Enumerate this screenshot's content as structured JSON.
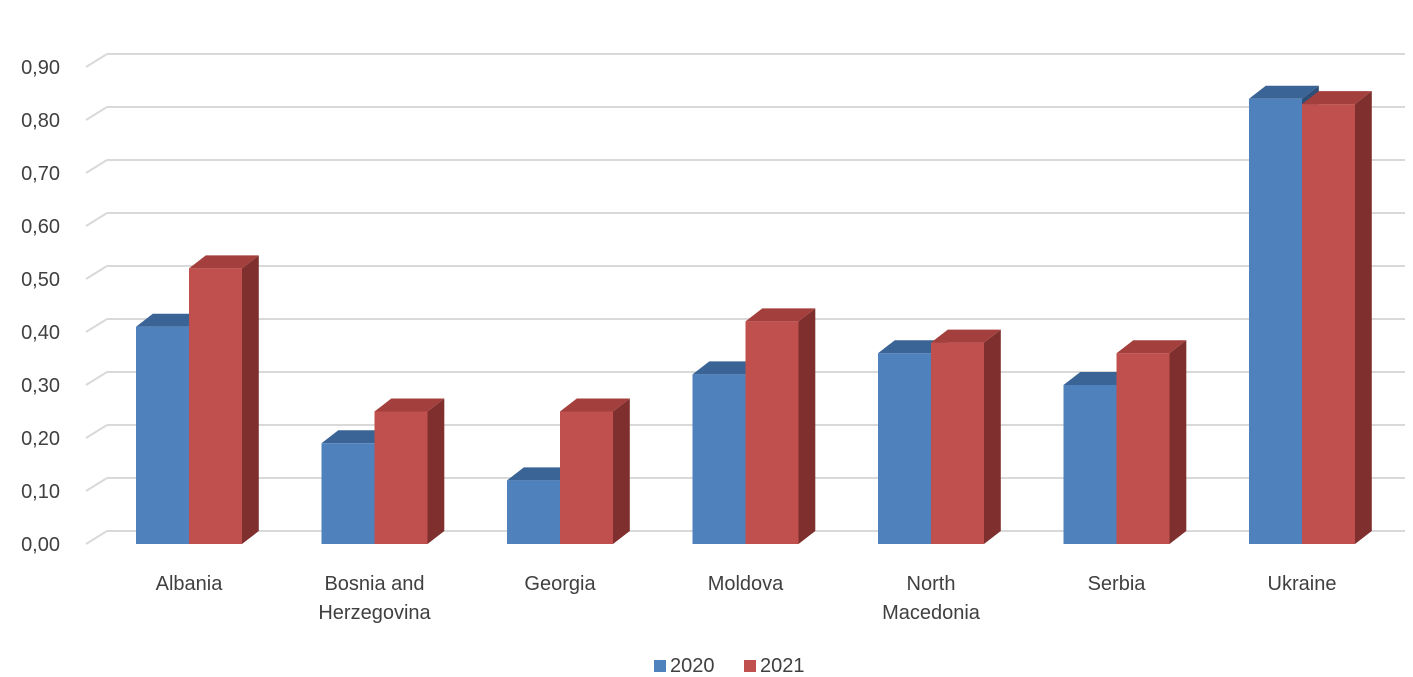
{
  "chart_data": {
    "type": "bar",
    "categories": [
      [
        "Albania"
      ],
      [
        "Bosnia and",
        "Herzegovina"
      ],
      [
        "Georgia"
      ],
      [
        "Moldova"
      ],
      [
        "North",
        "Macedonia"
      ],
      [
        "Serbia"
      ],
      [
        "Ukraine"
      ]
    ],
    "series": [
      {
        "name": "2020",
        "color": "#4F81BD",
        "top_color": "#3A6496",
        "side_color": "#2E4F78",
        "values": [
          0.41,
          0.19,
          0.12,
          0.32,
          0.36,
          0.3,
          0.84
        ]
      },
      {
        "name": "2021",
        "color": "#C0504D",
        "top_color": "#A33F3C",
        "side_color": "#7F2F2D",
        "values": [
          0.52,
          0.25,
          0.25,
          0.42,
          0.38,
          0.36,
          0.83
        ]
      }
    ],
    "ylim": [
      0,
      0.9
    ],
    "yticks": [
      "0,00",
      "0,10",
      "0,20",
      "0,30",
      "0,40",
      "0,50",
      "0,60",
      "0,70",
      "0,80",
      "0,90"
    ],
    "grid": true,
    "legend_position": "bottom",
    "style": "3d-clustered-column"
  }
}
